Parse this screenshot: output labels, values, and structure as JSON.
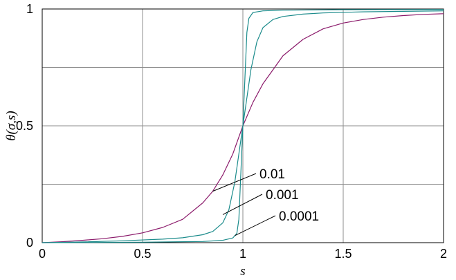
{
  "chart_data": {
    "type": "line",
    "title": "",
    "xlabel": "s",
    "ylabel": "θ(σ,s)",
    "xlim": [
      0,
      2
    ],
    "ylim": [
      0,
      1
    ],
    "xticks": [
      0,
      0.5,
      1,
      1.5,
      2
    ],
    "xtick_labels": [
      "0",
      "0.5",
      "1",
      "1.5",
      "2"
    ],
    "yticks": [
      0,
      0.5,
      1
    ],
    "ytick_labels": [
      "0",
      "0.5",
      "1"
    ],
    "grid": true,
    "grid_x": [
      0.5,
      1,
      1.5
    ],
    "grid_y": [
      0.25,
      0.5,
      0.75
    ],
    "series": [
      {
        "name": "0.01",
        "color": "#8b1a6b",
        "x": [
          0,
          0.1,
          0.2,
          0.3,
          0.4,
          0.5,
          0.6,
          0.7,
          0.8,
          0.85,
          0.9,
          0.95,
          1.0,
          1.05,
          1.1,
          1.2,
          1.3,
          1.4,
          1.5,
          1.6,
          1.7,
          1.8,
          1.9,
          2.0
        ],
        "y": [
          0.0,
          0.004,
          0.01,
          0.017,
          0.027,
          0.042,
          0.065,
          0.1,
          0.17,
          0.22,
          0.29,
          0.38,
          0.5,
          0.6,
          0.68,
          0.8,
          0.87,
          0.915,
          0.94,
          0.955,
          0.965,
          0.972,
          0.977,
          0.98
        ]
      },
      {
        "name": "0.001",
        "color": "#1b8b8b",
        "x": [
          0,
          0.2,
          0.4,
          0.6,
          0.7,
          0.8,
          0.85,
          0.9,
          0.93,
          0.96,
          0.98,
          1.0,
          1.02,
          1.04,
          1.07,
          1.1,
          1.15,
          1.2,
          1.3,
          1.4,
          1.6,
          1.8,
          2.0
        ],
        "y": [
          0.0,
          0.003,
          0.008,
          0.015,
          0.021,
          0.034,
          0.048,
          0.085,
          0.14,
          0.26,
          0.38,
          0.5,
          0.62,
          0.74,
          0.86,
          0.92,
          0.955,
          0.968,
          0.978,
          0.983,
          0.988,
          0.99,
          0.992
        ]
      },
      {
        "name": "0.0001",
        "color": "#1b8b8b",
        "x": [
          0,
          0.5,
          0.8,
          0.9,
          0.95,
          0.97,
          0.98,
          0.99,
          1.0,
          1.01,
          1.02,
          1.03,
          1.05,
          1.1,
          1.2,
          1.5,
          2.0
        ],
        "y": [
          0.0,
          0.002,
          0.005,
          0.01,
          0.02,
          0.04,
          0.1,
          0.3,
          0.5,
          0.7,
          0.9,
          0.96,
          0.985,
          0.992,
          0.995,
          0.997,
          0.998
        ]
      }
    ],
    "annotations": [
      {
        "text": "0.01",
        "series": 0,
        "point_x": 0.85,
        "point_y": 0.22
      },
      {
        "text": "0.001",
        "series": 1,
        "point_x": 0.9,
        "point_y": 0.12
      },
      {
        "text": "0.0001",
        "series": 2,
        "point_x": 0.96,
        "point_y": 0.03
      }
    ]
  }
}
